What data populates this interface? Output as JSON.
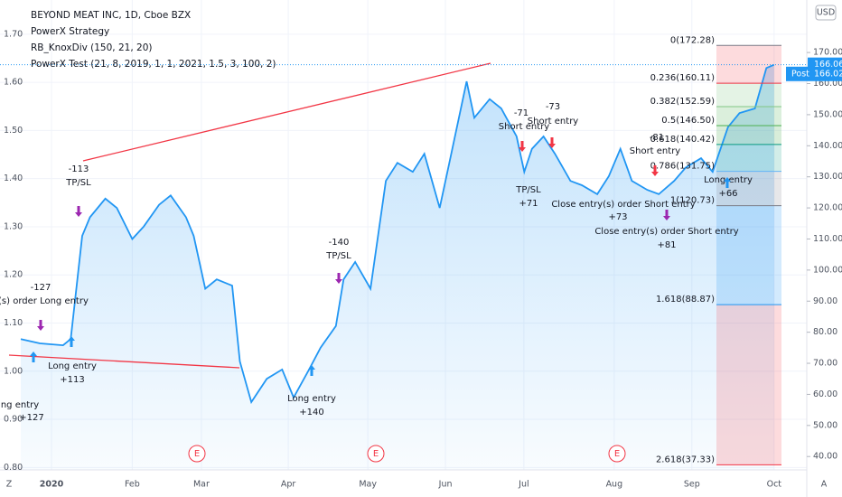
{
  "chart_data": {
    "type": "line",
    "title": "BEYOND MEAT INC, 1D, Cboe BZX",
    "legend_items": [
      "PowerX Strategy",
      "RB_KnoxDiv (150, 21, 20)",
      "PowerX Test (21, 8, 2019, 1, 1, 2021, 1.5, 3, 100, 2)"
    ],
    "currency": "USD",
    "last_price": {
      "value": 166.06,
      "label": "166.06"
    },
    "post_label": "Post",
    "post_price": {
      "value": 166.02,
      "label": "166.02"
    },
    "color": "#2196f3",
    "x": [
      -8,
      -3,
      3,
      5,
      8,
      10,
      14,
      17,
      21,
      24,
      28,
      31,
      35,
      37,
      40,
      43,
      47,
      49,
      52,
      56,
      60,
      63,
      67,
      70,
      74,
      76,
      79,
      83,
      87,
      90,
      94,
      97,
      101,
      104,
      108,
      110,
      114,
      117,
      121,
      123,
      125,
      128,
      131,
      135,
      138,
      142,
      145,
      148,
      151,
      155,
      158,
      162,
      165,
      169,
      172,
      176,
      179,
      183,
      186,
      188
    ],
    "values": [
      77.8,
      76.4,
      75.8,
      77.8,
      111,
      117,
      123,
      120,
      110,
      114,
      121,
      124,
      117,
      111,
      94,
      97,
      95,
      70.6,
      57.5,
      65,
      68,
      59,
      68,
      75,
      82,
      97,
      102.6,
      94,
      128.7,
      134.5,
      131.6,
      137.4,
      120,
      137.4,
      160.7,
      149,
      155,
      152,
      143,
      131.6,
      139,
      143,
      137.4,
      128.7,
      127.3,
      124.4,
      130.2,
      139,
      128.7,
      125.8,
      124.4,
      128.7,
      133,
      136,
      131.6,
      146,
      150.5,
      152,
      165,
      166.06
    ],
    "xlim": [
      -13.4,
      196.5
    ],
    "xticks": [
      {
        "value": 0,
        "label": "2020"
      },
      {
        "value": 21,
        "label": "Feb"
      },
      {
        "value": 39,
        "label": "Mar"
      },
      {
        "value": 61.6,
        "label": "Apr"
      },
      {
        "value": 82.3,
        "label": "May"
      },
      {
        "value": 102.5,
        "label": "Jun"
      },
      {
        "value": 122.9,
        "label": "Jul"
      },
      {
        "value": 146.4,
        "label": "Aug"
      },
      {
        "value": 166.6,
        "label": "Sep"
      },
      {
        "value": 188,
        "label": "Oct"
      }
    ],
    "ylim": [
      35.7,
      186.9
    ],
    "yticks": [
      {
        "value": 40,
        "label": "40.00"
      },
      {
        "value": 50,
        "label": "50.00"
      },
      {
        "value": 60,
        "label": "60.00"
      },
      {
        "value": 70,
        "label": "70.00"
      },
      {
        "value": 80,
        "label": "80.00"
      },
      {
        "value": 90,
        "label": "90.00"
      },
      {
        "value": 100,
        "label": "100.00"
      },
      {
        "value": 110,
        "label": "110.00"
      },
      {
        "value": 120,
        "label": "120.00"
      },
      {
        "value": 130,
        "label": "130.00"
      },
      {
        "value": 140,
        "label": "140.00"
      },
      {
        "value": 150,
        "label": "150.00"
      },
      {
        "value": 160,
        "label": "160.00"
      },
      {
        "value": 170,
        "label": "170.00"
      }
    ],
    "y2lim": [
      0.795,
      1.771
    ],
    "y2ticks": [
      {
        "value": 0.8,
        "label": "0.80"
      },
      {
        "value": 0.9,
        "label": "0.90"
      },
      {
        "value": 1.0,
        "label": "1.00"
      },
      {
        "value": 1.1,
        "label": "1.10"
      },
      {
        "value": 1.2,
        "label": "1.20"
      },
      {
        "value": 1.3,
        "label": "1.30"
      },
      {
        "value": 1.4,
        "label": "1.40"
      },
      {
        "value": 1.5,
        "label": "1.50"
      },
      {
        "value": 1.6,
        "label": "1.60"
      },
      {
        "value": 1.7,
        "label": "1.70"
      }
    ],
    "fib_levels": [
      {
        "label": "0(172.28)",
        "value": 172.28
      },
      {
        "label": "0.236(160.11)",
        "value": 160.11
      },
      {
        "label": "0.382(152.59)",
        "value": 152.59
      },
      {
        "label": "0.5(146.50)",
        "value": 146.5
      },
      {
        "label": "0.618(140.42)",
        "value": 140.42
      },
      {
        "label": "0.786(131.75)",
        "value": 131.75
      },
      {
        "label": "1(120.73)",
        "value": 120.73
      },
      {
        "label": "1.618(88.87)",
        "value": 88.87
      },
      {
        "label": "2.618(37.33)",
        "value": 37.33
      }
    ],
    "annotations": [
      "-127",
      "y(s) order Long entry",
      "-113",
      "TP/SL",
      "Long entry",
      "+113",
      "ng entry",
      "+127",
      "-140",
      "TP/SL",
      "Long entry",
      "+140",
      "-71",
      "Short entry",
      "-73",
      "Short entry",
      "TP/SL",
      "+71",
      "Close entry(s) order Short entry",
      "+73",
      "-81",
      "Short entry",
      "Close entry(s) order Short entry",
      "+81",
      "Long entry",
      "+66"
    ],
    "earnings": [
      "E",
      "E",
      "E"
    ],
    "corner_left": "Z",
    "corner_right": "A"
  }
}
